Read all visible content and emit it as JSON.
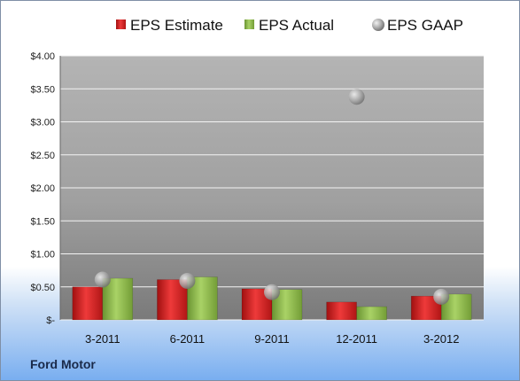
{
  "company_label": "Ford Motor",
  "chart_data": {
    "type": "bar",
    "title": "",
    "xlabel": "",
    "ylabel": "",
    "categories": [
      "3-2011",
      "6-2011",
      "9-2011",
      "12-2011",
      "3-2012"
    ],
    "series": [
      {
        "name": "EPS Estimate",
        "kind": "bar",
        "color": "#d42020",
        "values": [
          0.5,
          0.61,
          0.47,
          0.27,
          0.36
        ]
      },
      {
        "name": "EPS Actual",
        "kind": "bar",
        "color": "#8db84a",
        "values": [
          0.63,
          0.65,
          0.46,
          0.2,
          0.39
        ]
      },
      {
        "name": "EPS GAAP",
        "kind": "scatter",
        "color": "#a8a8a8",
        "values": [
          0.61,
          0.59,
          0.42,
          3.38,
          0.35
        ]
      }
    ],
    "ylim": [
      0,
      4.0
    ],
    "yticks": [
      0,
      0.5,
      1.0,
      1.5,
      2.0,
      2.5,
      3.0,
      3.5,
      4.0
    ],
    "ytick_labels": [
      "$-",
      "$0.50",
      "$1.00",
      "$1.50",
      "$2.00",
      "$2.50",
      "$3.00",
      "$3.50",
      "$4.00"
    ],
    "grid": true,
    "legend": "top"
  }
}
